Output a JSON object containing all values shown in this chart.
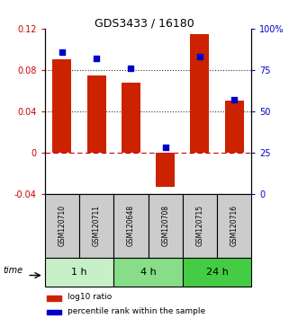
{
  "title": "GDS3433 / 16180",
  "samples": [
    "GSM120710",
    "GSM120711",
    "GSM120648",
    "GSM120708",
    "GSM120715",
    "GSM120716"
  ],
  "log10_ratio": [
    0.09,
    0.075,
    0.068,
    -0.033,
    0.115,
    0.05
  ],
  "percentile_rank": [
    86,
    82,
    76,
    28,
    83,
    57
  ],
  "ylim_left": [
    -0.04,
    0.12
  ],
  "ylim_right": [
    0,
    100
  ],
  "yticks_left": [
    -0.04,
    0,
    0.04,
    0.08,
    0.12
  ],
  "yticks_right": [
    0,
    25,
    50,
    75,
    100
  ],
  "hlines": [
    0.0,
    0.04,
    0.08
  ],
  "hline_styles": [
    "dashed",
    "dotted",
    "dotted"
  ],
  "hline_colors": [
    "#cc0000",
    "#000000",
    "#000000"
  ],
  "bar_color": "#cc2200",
  "dot_color": "#0000cc",
  "bar_width": 0.55,
  "time_groups": [
    {
      "label": "1 h",
      "indices": [
        0,
        1
      ],
      "color": "#c8f0c8"
    },
    {
      "label": "4 h",
      "indices": [
        2,
        3
      ],
      "color": "#88dd88"
    },
    {
      "label": "24 h",
      "indices": [
        4,
        5
      ],
      "color": "#44cc44"
    }
  ],
  "legend_red_label": "log10 ratio",
  "legend_blue_label": "percentile rank within the sample",
  "time_label": "time",
  "left_axis_color": "#cc0000",
  "right_axis_color": "#0000cc",
  "sample_box_color": "#cccccc"
}
